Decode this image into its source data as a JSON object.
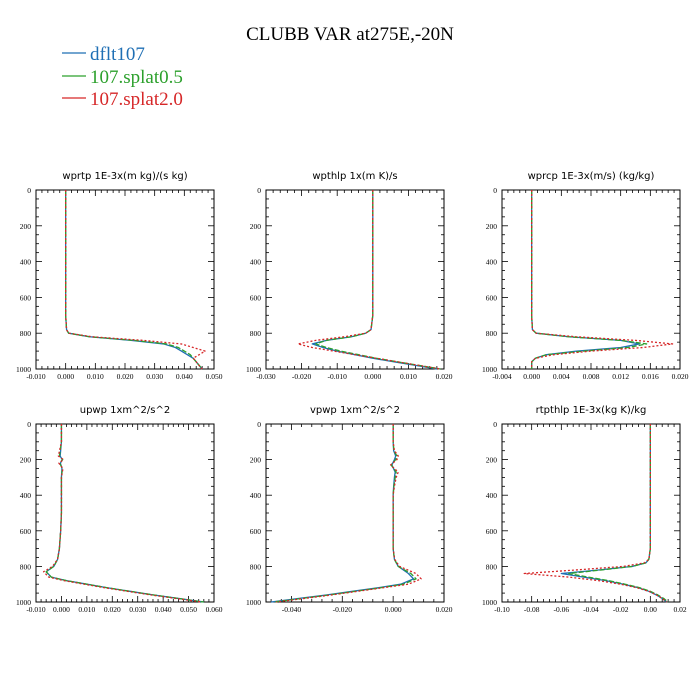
{
  "figure": {
    "title": "CLUBB VAR at275E,-20N"
  },
  "legend": {
    "entries": [
      {
        "name": "dflt107",
        "color": "#1f6fb4"
      },
      {
        "name": "107.splat0.5",
        "color": "#2ca02c"
      },
      {
        "name": "107.splat2.0",
        "color": "#d62728"
      }
    ]
  },
  "chart_data": [
    {
      "type": "line",
      "title": "wprtp  1E-3x(m kg)/(s kg)",
      "xlim": [
        -0.01,
        0.05
      ],
      "xticks": [
        -0.01,
        0.0,
        0.01,
        0.02,
        0.03,
        0.04,
        0.05
      ],
      "xtick_labels": [
        "-0.010",
        "0.000",
        "0.010",
        "0.020",
        "0.030",
        "0.040",
        "0.050"
      ],
      "ylim": [
        0,
        1000
      ],
      "yticks": [
        0,
        200,
        400,
        600,
        800,
        1000
      ],
      "ytick_labels": [
        "0",
        "200",
        "400",
        "600",
        "800",
        "1000"
      ],
      "y_inverted": true,
      "y": [
        0,
        100,
        200,
        300,
        400,
        500,
        600,
        700,
        780,
        800,
        820,
        840,
        860,
        880,
        900,
        920,
        940,
        960,
        980,
        1000
      ],
      "series": [
        {
          "name": "dflt107",
          "style": "solid",
          "values": [
            0,
            0,
            0,
            0,
            0,
            0,
            0,
            0,
            0.0003,
            0.001,
            0.008,
            0.022,
            0.033,
            0.037,
            0.039,
            0.041,
            0.043,
            0.044,
            0.045,
            0.046
          ]
        },
        {
          "name": "107.splat0.5",
          "style": "dashed",
          "values": [
            0,
            0,
            0,
            0,
            0,
            0,
            0,
            0,
            0.0003,
            0.001,
            0.008,
            0.023,
            0.034,
            0.038,
            0.04,
            0.042,
            0.043,
            0.044,
            0.045,
            0.046
          ]
        },
        {
          "name": "107.splat2.0",
          "style": "dotted",
          "values": [
            0,
            0,
            0,
            0,
            0,
            0,
            0,
            0,
            0.0003,
            0.001,
            0.009,
            0.026,
            0.039,
            0.043,
            0.047,
            0.045,
            0.043,
            0.044,
            0.045,
            0.046
          ]
        }
      ]
    },
    {
      "type": "line",
      "title": "wpthlp  1x(m K)/s",
      "xlim": [
        -0.03,
        0.02
      ],
      "xticks": [
        -0.03,
        -0.02,
        -0.01,
        0.0,
        0.01,
        0.02
      ],
      "xtick_labels": [
        "-0.030",
        "-0.020",
        "-0.010",
        "0.000",
        "0.010",
        "0.020"
      ],
      "ylim": [
        0,
        1000
      ],
      "yticks": [
        0,
        200,
        400,
        600,
        800,
        1000
      ],
      "ytick_labels": [
        "0",
        "200",
        "400",
        "600",
        "800",
        "1000"
      ],
      "y_inverted": true,
      "y": [
        0,
        100,
        200,
        300,
        400,
        500,
        600,
        700,
        780,
        800,
        820,
        840,
        860,
        880,
        900,
        920,
        940,
        960,
        980,
        1000
      ],
      "series": [
        {
          "name": "dflt107",
          "style": "solid",
          "values": [
            0,
            0,
            0,
            0,
            0,
            0,
            0,
            0,
            -0.0005,
            -0.002,
            -0.006,
            -0.013,
            -0.017,
            -0.014,
            -0.01,
            -0.005,
            0.0,
            0.006,
            0.012,
            0.018
          ]
        },
        {
          "name": "107.splat0.5",
          "style": "dashed",
          "values": [
            0,
            0,
            0,
            0,
            0,
            0,
            0,
            0,
            -0.0005,
            -0.002,
            -0.006,
            -0.013,
            -0.016,
            -0.013,
            -0.009,
            -0.004,
            0.001,
            0.007,
            0.013,
            0.019
          ]
        },
        {
          "name": "107.splat2.0",
          "style": "dotted",
          "values": [
            0,
            0,
            0,
            0,
            0,
            0,
            0,
            0,
            -0.0005,
            -0.002,
            -0.008,
            -0.016,
            -0.021,
            -0.017,
            -0.011,
            -0.005,
            0.001,
            0.007,
            0.013,
            0.019
          ]
        }
      ]
    },
    {
      "type": "line",
      "title": "wprcp  1E-3x(m/s) (kg/kg)",
      "xlim": [
        -0.004,
        0.02
      ],
      "xticks": [
        -0.004,
        0.0,
        0.004,
        0.008,
        0.012,
        0.016,
        0.02
      ],
      "xtick_labels": [
        "-0.004",
        "0.000",
        "0.004",
        "0.008",
        "0.012",
        "0.016",
        "0.020"
      ],
      "ylim": [
        0,
        1000
      ],
      "yticks": [
        0,
        200,
        400,
        600,
        800,
        1000
      ],
      "ytick_labels": [
        "0",
        "200",
        "400",
        "600",
        "800",
        "1000"
      ],
      "y_inverted": true,
      "y": [
        0,
        100,
        200,
        300,
        400,
        500,
        600,
        700,
        780,
        800,
        820,
        840,
        860,
        880,
        900,
        920,
        940,
        960,
        980,
        1000
      ],
      "series": [
        {
          "name": "dflt107",
          "style": "solid",
          "values": [
            0,
            0,
            0,
            0,
            0,
            0,
            0,
            0,
            0.0001,
            0.0006,
            0.005,
            0.012,
            0.0145,
            0.012,
            0.006,
            0.002,
            0.0005,
            0,
            0,
            0
          ]
        },
        {
          "name": "107.splat0.5",
          "style": "dashed",
          "values": [
            0,
            0,
            0,
            0,
            0,
            0,
            0,
            0,
            0.0001,
            0.0006,
            0.005,
            0.012,
            0.0155,
            0.013,
            0.007,
            0.002,
            0.0005,
            0,
            0,
            0
          ]
        },
        {
          "name": "107.splat2.0",
          "style": "dotted",
          "values": [
            0,
            0,
            0,
            0,
            0,
            0,
            0,
            0,
            0.0001,
            0.0006,
            0.006,
            0.014,
            0.019,
            0.015,
            0.008,
            0.003,
            0.0005,
            0,
            0,
            0
          ]
        }
      ]
    },
    {
      "type": "line",
      "title": "upwp  1xm^2/s^2",
      "xlim": [
        -0.01,
        0.06
      ],
      "xticks": [
        -0.01,
        0.0,
        0.01,
        0.02,
        0.03,
        0.04,
        0.05,
        0.06
      ],
      "xtick_labels": [
        "-0.010",
        "0.000",
        "0.010",
        "0.020",
        "0.030",
        "0.040",
        "0.050",
        "0.060"
      ],
      "ylim": [
        0,
        1000
      ],
      "yticks": [
        0,
        200,
        400,
        600,
        800,
        1000
      ],
      "ytick_labels": [
        "0",
        "200",
        "400",
        "600",
        "800",
        "1000"
      ],
      "y_inverted": true,
      "y": [
        0,
        100,
        180,
        200,
        220,
        250,
        300,
        400,
        500,
        600,
        700,
        760,
        800,
        830,
        860,
        880,
        900,
        920,
        940,
        960,
        980,
        1000
      ],
      "series": [
        {
          "name": "dflt107",
          "style": "solid",
          "values": [
            0,
            0,
            -0.0005,
            0.0003,
            -0.0004,
            0.0002,
            0,
            0,
            0,
            -0.0003,
            -0.0008,
            -0.0015,
            -0.003,
            -0.006,
            -0.004,
            0.002,
            0.01,
            0.018,
            0.027,
            0.036,
            0.046,
            0.056
          ]
        },
        {
          "name": "107.splat0.5",
          "style": "dashed",
          "values": [
            0,
            0,
            -0.0008,
            0.0005,
            -0.0007,
            0.0004,
            0,
            0,
            0,
            -0.0003,
            -0.0008,
            -0.0015,
            -0.003,
            -0.006,
            -0.004,
            0.002,
            0.01,
            0.018,
            0.027,
            0.036,
            0.046,
            0.056
          ]
        },
        {
          "name": "107.splat2.0",
          "style": "dotted",
          "values": [
            0,
            0,
            -0.0012,
            0.0008,
            -0.001,
            0.0006,
            0,
            0,
            0,
            -0.0003,
            -0.0008,
            -0.0015,
            -0.0035,
            -0.007,
            -0.005,
            0.001,
            0.009,
            0.017,
            0.026,
            0.035,
            0.045,
            0.055
          ]
        }
      ]
    },
    {
      "type": "line",
      "title": "vpwp  1xm^2/s^2",
      "xlim": [
        -0.05,
        0.02
      ],
      "xticks": [
        -0.04,
        -0.02,
        0.0,
        0.02
      ],
      "xtick_labels": [
        "-0.040",
        "-0.020",
        "0.000",
        "0.020"
      ],
      "ylim": [
        0,
        1000
      ],
      "yticks": [
        0,
        200,
        400,
        600,
        800,
        1000
      ],
      "ytick_labels": [
        "0",
        "200",
        "400",
        "600",
        "800",
        "1000"
      ],
      "y_inverted": true,
      "y": [
        0,
        100,
        150,
        180,
        200,
        230,
        270,
        300,
        350,
        400,
        500,
        600,
        700,
        760,
        800,
        840,
        870,
        900,
        920,
        940,
        960,
        980,
        1000
      ],
      "series": [
        {
          "name": "dflt107",
          "style": "solid",
          "values": [
            0,
            0,
            0.0002,
            0.001,
            0.0005,
            -0.0005,
            0.0008,
            0.0005,
            0.0002,
            0,
            0,
            0,
            0,
            0.0005,
            0.002,
            0.006,
            0.008,
            0.003,
            -0.006,
            -0.016,
            -0.026,
            -0.037,
            -0.048
          ]
        },
        {
          "name": "107.splat0.5",
          "style": "dashed",
          "values": [
            0,
            0,
            0.0003,
            0.0015,
            0.001,
            -0.0008,
            0.0012,
            0.0008,
            0.0003,
            0,
            0,
            0,
            0,
            0.0005,
            0.002,
            0.007,
            0.009,
            0.004,
            -0.005,
            -0.015,
            -0.025,
            -0.036,
            -0.047
          ]
        },
        {
          "name": "107.splat2.0",
          "style": "dotted",
          "values": [
            0,
            0,
            0.0005,
            0.002,
            0.0015,
            -0.001,
            0.002,
            0.0012,
            0.0005,
            0,
            0,
            0,
            0,
            0.0006,
            0.0025,
            0.009,
            0.011,
            0.006,
            -0.004,
            -0.014,
            -0.024,
            -0.035,
            -0.046
          ]
        }
      ]
    },
    {
      "type": "line",
      "title": "rtpthlp  1E-3x(kg K)/kg",
      "xlim": [
        -0.1,
        0.02
      ],
      "xticks": [
        -0.1,
        -0.08,
        -0.06,
        -0.04,
        -0.02,
        0.0,
        0.02
      ],
      "xtick_labels": [
        "-0.10",
        "-0.08",
        "-0.06",
        "-0.04",
        "-0.02",
        "0.00",
        "0.02"
      ],
      "ylim": [
        0,
        1000
      ],
      "yticks": [
        0,
        200,
        400,
        600,
        800,
        1000
      ],
      "ytick_labels": [
        "0",
        "200",
        "400",
        "600",
        "800",
        "1000"
      ],
      "y_inverted": true,
      "y": [
        0,
        100,
        200,
        300,
        400,
        500,
        600,
        700,
        760,
        780,
        800,
        820,
        840,
        860,
        880,
        900,
        920,
        940,
        960,
        980,
        1000
      ],
      "series": [
        {
          "name": "dflt107",
          "style": "solid",
          "values": [
            0,
            0,
            0,
            0,
            0,
            0,
            0,
            0,
            -0.001,
            -0.003,
            -0.012,
            -0.035,
            -0.06,
            -0.045,
            -0.03,
            -0.018,
            -0.008,
            -0.001,
            0.004,
            0.008,
            0.011
          ]
        },
        {
          "name": "107.splat0.5",
          "style": "dashed",
          "values": [
            0,
            0,
            0,
            0,
            0,
            0,
            0,
            0,
            -0.001,
            -0.003,
            -0.012,
            -0.033,
            -0.055,
            -0.042,
            -0.028,
            -0.017,
            -0.007,
            0.0,
            0.005,
            0.009,
            0.012
          ]
        },
        {
          "name": "107.splat2.0",
          "style": "dotted",
          "values": [
            0,
            0,
            0,
            0,
            0,
            0,
            0,
            0,
            -0.001,
            -0.004,
            -0.018,
            -0.05,
            -0.085,
            -0.055,
            -0.035,
            -0.02,
            -0.009,
            -0.001,
            0.004,
            0.008,
            0.011
          ]
        }
      ]
    }
  ]
}
